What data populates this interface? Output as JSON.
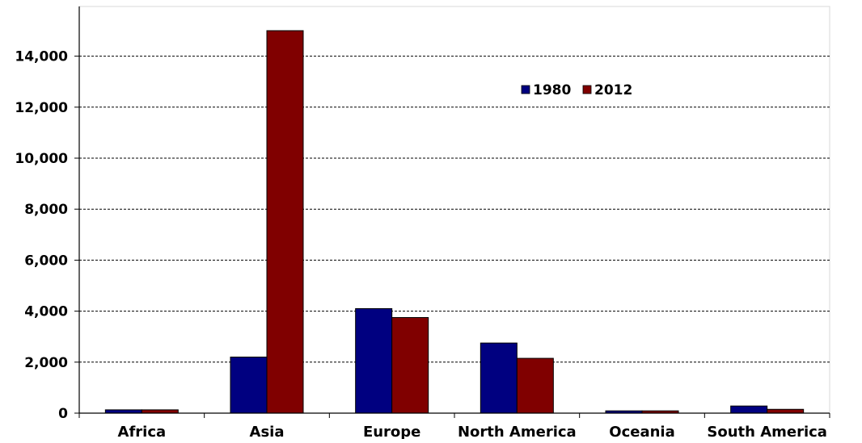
{
  "chart_data": {
    "type": "bar",
    "title": "",
    "xlabel": "",
    "ylabel": "",
    "categories": [
      "Africa",
      "Asia",
      "Europe",
      "North America",
      "Oceania",
      "South America"
    ],
    "series": [
      {
        "name": "1980",
        "color": "#000080",
        "values": [
          130,
          2200,
          4100,
          2750,
          90,
          280
        ]
      },
      {
        "name": "2012",
        "color": "#800000",
        "values": [
          130,
          15000,
          3750,
          2150,
          90,
          150
        ]
      }
    ],
    "ylim": [
      0,
      15000
    ],
    "yticks": [
      0,
      2000,
      4000,
      6000,
      8000,
      10000,
      12000,
      14000
    ],
    "ytick_labels": [
      "0",
      "2,000",
      "4,000",
      "6,000",
      "8,000",
      "10,000",
      "12,000",
      "14,000"
    ],
    "grid": true,
    "legend_position": "top-center"
  }
}
